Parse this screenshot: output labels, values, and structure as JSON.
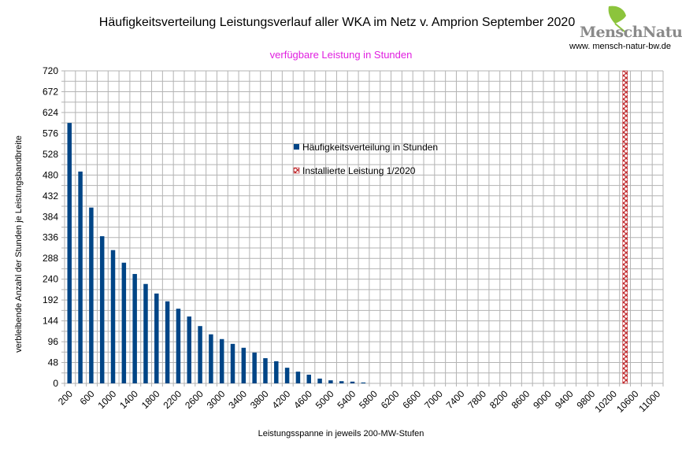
{
  "header": {
    "title": "Häufigkeitsverteilung Leistungsverlauf aller WKA im Netz v. Amprion September 2020",
    "logo_text": "MenschNatur",
    "url": "www. mensch-natur-bw.de"
  },
  "chart_data": {
    "type": "bar",
    "title": "Häufigkeitsverteilung Leistungsverlauf aller WKA im Netz v. Amprion September 2020",
    "subtitle": "verfügbare Leistung in Stunden",
    "xlabel": "Leistungsspanne in jeweils 200-MW-Stufen",
    "ylabel": "verbleibende Anzahl der Stunden je Leistungsbandbreite",
    "ylim": [
      0,
      720
    ],
    "yticks": [
      0,
      48,
      96,
      144,
      192,
      240,
      288,
      336,
      384,
      432,
      480,
      528,
      576,
      624,
      672,
      720
    ],
    "grid": true,
    "legend_position": "center-top",
    "categories": [
      200,
      400,
      600,
      800,
      1000,
      1200,
      1400,
      1600,
      1800,
      2000,
      2200,
      2400,
      2600,
      2800,
      3000,
      3200,
      3400,
      3600,
      3800,
      4000,
      4200,
      4400,
      4600,
      4800,
      5000,
      5200,
      5400,
      5600,
      5800,
      6000,
      6200,
      6400,
      6600,
      6800,
      7000,
      7200,
      7400,
      7600,
      7800,
      8000,
      8200,
      8400,
      8600,
      8800,
      9000,
      9200,
      9400,
      9600,
      9800,
      10000,
      10200,
      10400,
      10600,
      10800,
      11000
    ],
    "xtick_labels": [
      "200",
      "600",
      "1000",
      "1400",
      "1800",
      "2200",
      "2600",
      "3000",
      "3400",
      "3800",
      "4200",
      "4600",
      "5000",
      "5400",
      "5800",
      "6200",
      "6600",
      "7000",
      "7400",
      "7800",
      "8200",
      "8600",
      "9000",
      "9400",
      "9800",
      "10200",
      "10600",
      "11000"
    ],
    "series": [
      {
        "name": "Häufigkeitsverteilung in Stunden",
        "color": "#004586",
        "values": [
          600,
          488,
          405,
          339,
          307,
          278,
          252,
          229,
          207,
          189,
          172,
          154,
          132,
          113,
          102,
          91,
          82,
          71,
          58,
          51,
          36,
          27,
          20,
          11,
          7,
          5,
          4,
          2,
          0,
          0,
          0,
          0,
          0,
          0,
          0,
          0,
          0,
          0,
          0,
          0,
          0,
          0,
          0,
          0,
          0,
          0,
          0,
          0,
          0,
          0,
          0,
          0,
          0,
          0,
          0
        ]
      },
      {
        "name": "Installierte Leistung 1/2020",
        "color": "#c0282c",
        "pattern": "crosshatch",
        "category": 10400,
        "value": 720
      }
    ]
  }
}
